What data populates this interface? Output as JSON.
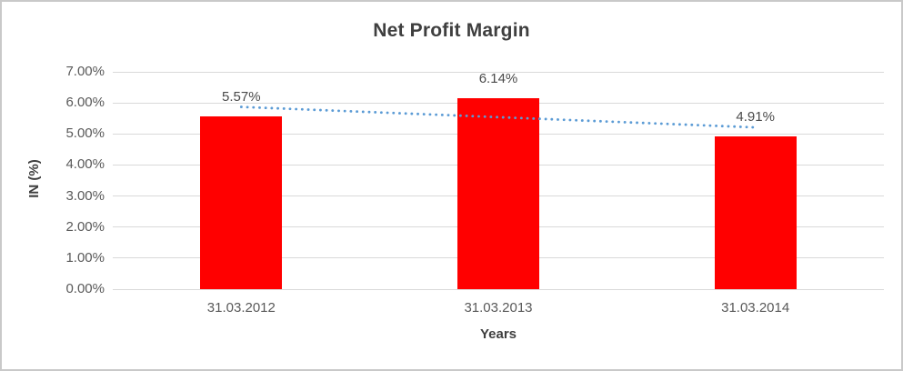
{
  "frame": {
    "border_color": "#C9C9C9",
    "background": "#FFFFFF"
  },
  "chart_data": {
    "type": "bar",
    "title": "Net Profit Margin",
    "categories": [
      "31.03.2012",
      "31.03.2013",
      "31.03.2014"
    ],
    "values": [
      5.57,
      6.14,
      4.91
    ],
    "data_labels": [
      "5.57%",
      "6.14%",
      "4.91%"
    ],
    "xlabel": "Years",
    "ylabel": "IN (%)",
    "ylim": [
      0,
      7
    ],
    "yticks": [
      "7.00%",
      "6.00%",
      "5.00%",
      "4.00%",
      "3.00%",
      "2.00%",
      "1.00%",
      "0.00%"
    ],
    "grid": true,
    "legend": "none",
    "colors": {
      "bar": "#FF0000",
      "gridline": "#D9D9D9",
      "axis_text": "#595959",
      "title_text": "#3F3F3F",
      "data_label_text": "#4A4A4A",
      "trendline": "#5B9BD5"
    },
    "trendline": {
      "type": "linear",
      "style": "dotted",
      "start_value": 5.87,
      "end_value": 5.21
    }
  }
}
